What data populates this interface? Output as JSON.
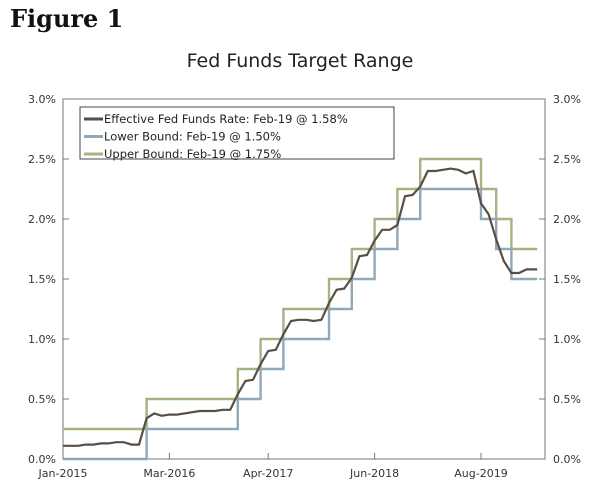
{
  "figure_label": "Figure 1",
  "chart_data": {
    "type": "line",
    "title": "Fed Funds Target Range",
    "xlabel": "",
    "ylabel": "",
    "ylim": [
      0,
      3
    ],
    "yticks": [
      "0.0%",
      "0.5%",
      "1.0%",
      "1.5%",
      "2.0%",
      "2.5%",
      "3.0%"
    ],
    "xtick_labels": [
      "Jan-2015",
      "Mar-2016",
      "Apr-2017",
      "Jun-2018",
      "Aug-2019"
    ],
    "xtick_months": [
      "Jan-2015",
      "Mar-2016",
      "Apr-2017",
      "Jun-2018",
      "Aug-2019"
    ],
    "grid": false,
    "legend_placement": "top-left",
    "x": [
      "Jan-2015",
      "Feb-2015",
      "Mar-2015",
      "Apr-2015",
      "May-2015",
      "Jun-2015",
      "Jul-2015",
      "Aug-2015",
      "Sep-2015",
      "Oct-2015",
      "Nov-2015",
      "Dec-2015",
      "Jan-2016",
      "Feb-2016",
      "Mar-2016",
      "Apr-2016",
      "May-2016",
      "Jun-2016",
      "Jul-2016",
      "Aug-2016",
      "Sep-2016",
      "Oct-2016",
      "Nov-2016",
      "Dec-2016",
      "Jan-2017",
      "Feb-2017",
      "Mar-2017",
      "Apr-2017",
      "May-2017",
      "Jun-2017",
      "Jul-2017",
      "Aug-2017",
      "Sep-2017",
      "Oct-2017",
      "Nov-2017",
      "Dec-2017",
      "Jan-2018",
      "Feb-2018",
      "Mar-2018",
      "Apr-2018",
      "May-2018",
      "Jun-2018",
      "Jul-2018",
      "Aug-2018",
      "Sep-2018",
      "Oct-2018",
      "Nov-2018",
      "Dec-2018",
      "Jan-2019",
      "Feb-2019",
      "Mar-2019",
      "Apr-2019",
      "May-2019",
      "Jun-2019",
      "Jul-2019",
      "Aug-2019",
      "Sep-2019",
      "Oct-2019",
      "Nov-2019",
      "Dec-2019",
      "Jan-2020",
      "Feb-2020"
    ],
    "series": [
      {
        "name": "Effective Fed Funds Rate: Feb-19 @ 1.58%",
        "color": "#5a4e44",
        "values": [
          0.11,
          0.11,
          0.11,
          0.12,
          0.12,
          0.13,
          0.13,
          0.14,
          0.14,
          0.12,
          0.12,
          0.34,
          0.38,
          0.36,
          0.37,
          0.37,
          0.38,
          0.39,
          0.4,
          0.4,
          0.4,
          0.41,
          0.41,
          0.54,
          0.65,
          0.66,
          0.79,
          0.9,
          0.91,
          1.04,
          1.15,
          1.16,
          1.16,
          1.15,
          1.16,
          1.3,
          1.41,
          1.42,
          1.51,
          1.69,
          1.7,
          1.82,
          1.91,
          1.91,
          1.95,
          2.19,
          2.2,
          2.27,
          2.4,
          2.4,
          2.41,
          2.42,
          2.41,
          2.38,
          2.4,
          2.13,
          2.04,
          1.83,
          1.65,
          1.55,
          1.55,
          1.58
        ]
      },
      {
        "name": "Lower Bound: Feb-19 @ 1.50%",
        "color": "#8fa9b9",
        "values": [
          0,
          0,
          0,
          0,
          0,
          0,
          0,
          0,
          0,
          0,
          0,
          0.25,
          0.25,
          0.25,
          0.25,
          0.25,
          0.25,
          0.25,
          0.25,
          0.25,
          0.25,
          0.25,
          0.25,
          0.5,
          0.5,
          0.5,
          0.75,
          0.75,
          0.75,
          1.0,
          1.0,
          1.0,
          1.0,
          1.0,
          1.0,
          1.25,
          1.25,
          1.25,
          1.5,
          1.5,
          1.5,
          1.75,
          1.75,
          1.75,
          2.0,
          2.0,
          2.0,
          2.25,
          2.25,
          2.25,
          2.25,
          2.25,
          2.25,
          2.25,
          2.25,
          2.0,
          2.0,
          1.75,
          1.75,
          1.5,
          1.5,
          1.5
        ]
      },
      {
        "name": "Upper Bound: Feb-19 @ 1.75%",
        "color": "#a7b283",
        "values": [
          0.25,
          0.25,
          0.25,
          0.25,
          0.25,
          0.25,
          0.25,
          0.25,
          0.25,
          0.25,
          0.25,
          0.5,
          0.5,
          0.5,
          0.5,
          0.5,
          0.5,
          0.5,
          0.5,
          0.5,
          0.5,
          0.5,
          0.5,
          0.75,
          0.75,
          0.75,
          1.0,
          1.0,
          1.0,
          1.25,
          1.25,
          1.25,
          1.25,
          1.25,
          1.25,
          1.5,
          1.5,
          1.5,
          1.75,
          1.75,
          1.75,
          2.0,
          2.0,
          2.0,
          2.25,
          2.25,
          2.25,
          2.5,
          2.5,
          2.5,
          2.5,
          2.5,
          2.5,
          2.5,
          2.5,
          2.25,
          2.25,
          2.0,
          2.0,
          1.75,
          1.75,
          1.75
        ]
      }
    ]
  }
}
